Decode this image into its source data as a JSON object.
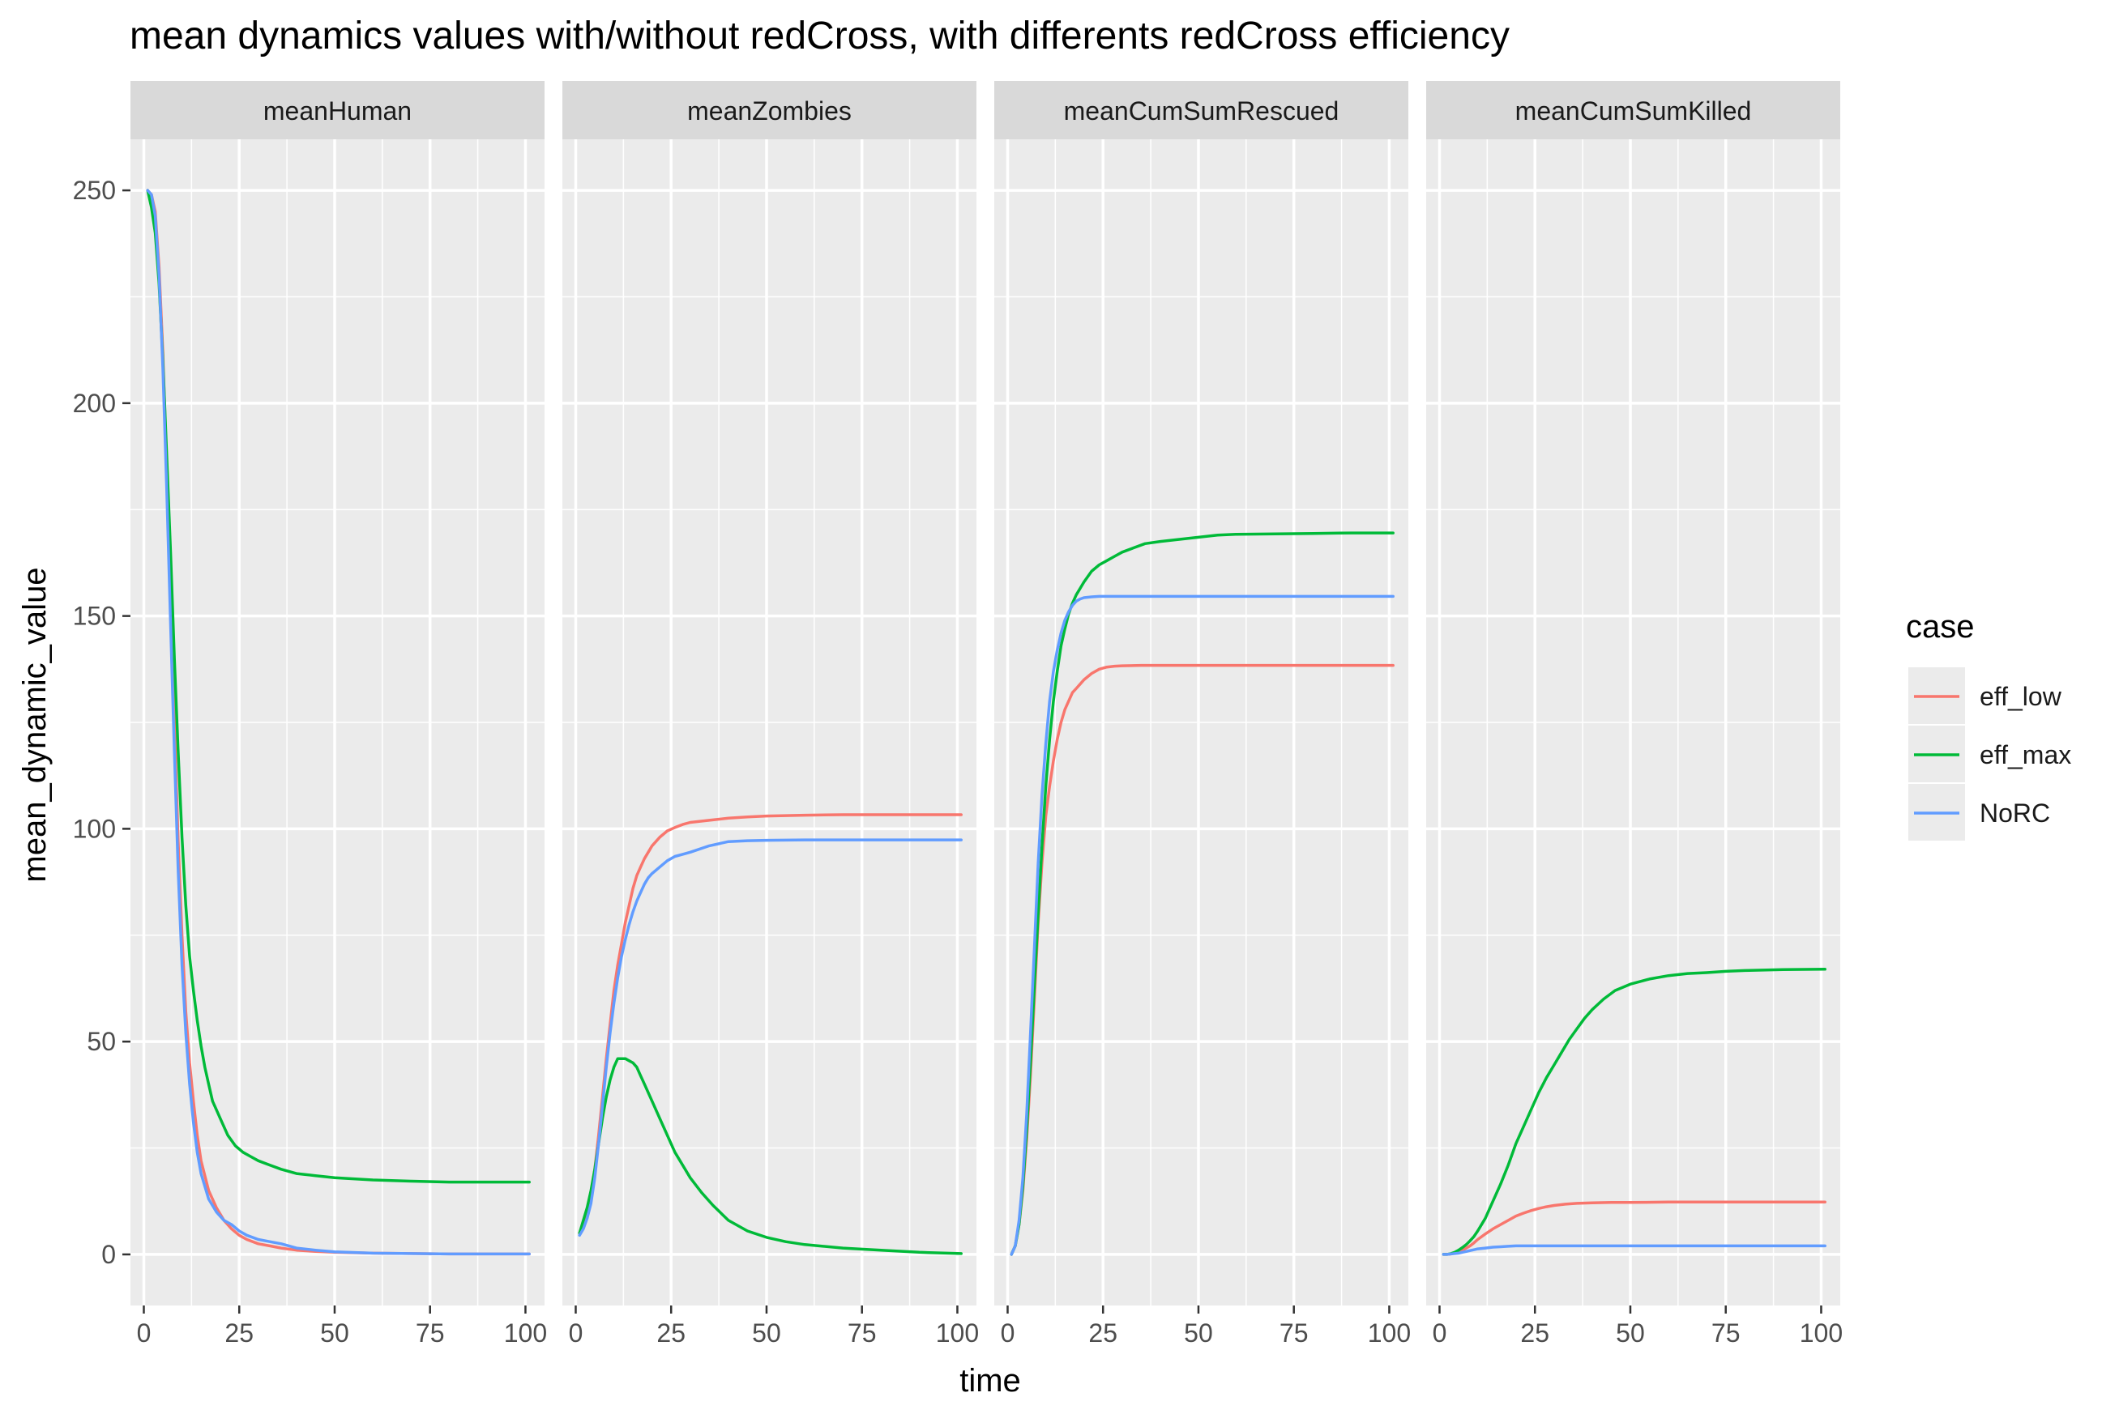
{
  "chart_data": {
    "type": "line",
    "title": "mean dynamics values with/without redCross, with differents redCross efficiency",
    "xlabel": "time",
    "ylabel": "mean_dynamic_value",
    "x_ticks": [
      0,
      25,
      50,
      75,
      100
    ],
    "y_ticks": [
      0,
      50,
      100,
      150,
      200,
      250
    ],
    "xlim": [
      -3.5,
      105
    ],
    "ylim": [
      -12,
      262
    ],
    "grid": true,
    "legend": {
      "title": "case",
      "position": "right",
      "entries": [
        {
          "name": "eff_low",
          "color": "#F8766D"
        },
        {
          "name": "eff_max",
          "color": "#00BA38"
        },
        {
          "name": "NoRC",
          "color": "#619CFF"
        }
      ]
    },
    "panels": [
      {
        "title": "meanHuman",
        "series": [
          {
            "name": "eff_low",
            "x": [
              1,
              2,
              3,
              4,
              5,
              6,
              7,
              8,
              9,
              10,
              11,
              12,
              13,
              14,
              15,
              17,
              19,
              21,
              23,
              25,
              27,
              30,
              33,
              36,
              40,
              45,
              50,
              60,
              70,
              80,
              90,
              101
            ],
            "y": [
              250,
              249,
              245,
              232,
              212,
              185,
              155,
              125,
              97,
              75,
              57,
              45,
              36,
              28,
              22,
              15,
              11,
              8,
              6,
              4.5,
              3.5,
              2.5,
              2,
              1.5,
              1,
              0.7,
              0.5,
              0.3,
              0.2,
              0.1,
              0.1,
              0.1
            ]
          },
          {
            "name": "eff_max",
            "x": [
              1,
              2,
              3,
              4,
              5,
              6,
              7,
              8,
              9,
              10,
              11,
              12,
              13,
              14,
              15,
              16,
              17,
              18,
              19,
              20,
              22,
              24,
              26,
              28,
              30,
              33,
              36,
              40,
              45,
              50,
              60,
              70,
              80,
              90,
              101
            ],
            "y": [
              250,
              246,
              240,
              228,
              210,
              188,
              165,
              140,
              118,
              98,
              82,
              70,
              62,
              55,
              49,
              44,
              40,
              36,
              34,
              32,
              28,
              25.5,
              24,
              23,
              22,
              21,
              20,
              19,
              18.5,
              18,
              17.5,
              17.2,
              17,
              17,
              17
            ]
          },
          {
            "name": "NoRC",
            "x": [
              1,
              2,
              3,
              4,
              5,
              6,
              7,
              8,
              9,
              10,
              11,
              12,
              13,
              14,
              15,
              17,
              19,
              21,
              23,
              25,
              27,
              30,
              33,
              36,
              40,
              45,
              50,
              60,
              70,
              80,
              90,
              101
            ],
            "y": [
              250,
              249,
              244,
              230,
              208,
              180,
              148,
              118,
              90,
              68,
              52,
              40,
              31,
              24,
              19,
              13,
              10,
              8,
              7,
              5.5,
              4.5,
              3.5,
              3,
              2.5,
              1.5,
              1,
              0.6,
              0.3,
              0.2,
              0.1,
              0.1,
              0.1
            ]
          }
        ]
      },
      {
        "title": "meanZombies",
        "series": [
          {
            "name": "eff_low",
            "x": [
              1,
              2,
              3,
              4,
              5,
              6,
              7,
              8,
              9,
              10,
              11,
              12,
              13,
              14,
              15,
              16,
              17,
              18,
              19,
              20,
              22,
              24,
              26,
              28,
              30,
              35,
              40,
              45,
              50,
              60,
              70,
              80,
              90,
              101
            ],
            "y": [
              5,
              7,
              10,
              14,
              20,
              28,
              37,
              46,
              54,
              62,
              68,
              73,
              78,
              82,
              86,
              89,
              91,
              93,
              94.5,
              96,
              98,
              99.5,
              100.3,
              101,
              101.5,
              102,
              102.5,
              102.8,
              103,
              103.2,
              103.3,
              103.3,
              103.3,
              103.3
            ]
          },
          {
            "name": "eff_max",
            "x": [
              1,
              2,
              3,
              4,
              5,
              6,
              7,
              8,
              9,
              10,
              11,
              12,
              13,
              14,
              15,
              16,
              17,
              18,
              19,
              20,
              22,
              24,
              26,
              28,
              30,
              33,
              36,
              40,
              45,
              50,
              55,
              60,
              70,
              80,
              90,
              101
            ],
            "y": [
              5,
              8,
              11,
              15,
              20,
              26,
              32,
              37,
              41,
              44,
              46,
              46,
              46,
              45.5,
              45,
              44,
              42,
              40,
              38,
              36,
              32,
              28,
              24,
              21,
              18,
              14.5,
              11.5,
              8,
              5.5,
              4,
              3,
              2.3,
              1.5,
              1,
              0.5,
              0.2
            ]
          },
          {
            "name": "NoRC",
            "x": [
              1,
              2,
              3,
              4,
              5,
              6,
              7,
              8,
              9,
              10,
              11,
              12,
              13,
              14,
              15,
              16,
              17,
              18,
              19,
              20,
              22,
              24,
              26,
              28,
              30,
              35,
              40,
              45,
              50,
              60,
              70,
              80,
              90,
              101
            ],
            "y": [
              4.5,
              6,
              8.5,
              12,
              18,
              26,
              35,
              44,
              52,
              59,
              65,
              70,
              74,
              77.5,
              80.5,
              83,
              85,
              87,
              88.5,
              89.5,
              91,
              92.5,
              93.5,
              94,
              94.5,
              96,
              97,
              97.2,
              97.3,
              97.4,
              97.4,
              97.4,
              97.4,
              97.4
            ]
          }
        ]
      },
      {
        "title": "meanCumSumRescued",
        "series": [
          {
            "name": "eff_low",
            "x": [
              1,
              2,
              3,
              4,
              5,
              6,
              7,
              8,
              9,
              10,
              11,
              12,
              13,
              14,
              15,
              16,
              17,
              18,
              19,
              20,
              22,
              24,
              26,
              28,
              30,
              35,
              40,
              50,
              60,
              70,
              80,
              90,
              101
            ],
            "y": [
              0,
              2,
              7,
              15,
              27,
              42,
              60,
              78,
              92,
              103,
              110,
              116,
              121,
              125,
              128,
              130,
              132,
              133,
              134,
              135,
              136.5,
              137.5,
              138,
              138.2,
              138.3,
              138.4,
              138.4,
              138.4,
              138.4,
              138.4,
              138.4,
              138.4,
              138.4
            ]
          },
          {
            "name": "eff_max",
            "x": [
              1,
              2,
              3,
              4,
              5,
              6,
              7,
              8,
              9,
              10,
              11,
              12,
              13,
              14,
              15,
              16,
              17,
              18,
              19,
              20,
              22,
              24,
              26,
              28,
              30,
              33,
              36,
              40,
              45,
              50,
              55,
              60,
              70,
              80,
              90,
              101
            ],
            "y": [
              0,
              2,
              7,
              16,
              29,
              45,
              63,
              80,
              96,
              110,
              121,
              130,
              137,
              143,
              147,
              150.5,
              153,
              155,
              156.5,
              158,
              160.5,
              162,
              163,
              164,
              165,
              166,
              167,
              167.5,
              168,
              168.5,
              169,
              169.2,
              169.3,
              169.4,
              169.5,
              169.5
            ]
          },
          {
            "name": "NoRC",
            "x": [
              1,
              2,
              3,
              4,
              5,
              6,
              7,
              8,
              9,
              10,
              11,
              12,
              13,
              14,
              15,
              16,
              17,
              18,
              19,
              20,
              22,
              24,
              26,
              28,
              30,
              35,
              40,
              50,
              60,
              70,
              80,
              90,
              101
            ],
            "y": [
              0,
              2,
              8,
              18,
              33,
              52,
              72,
              92,
              108,
              120,
              130,
              137,
              142,
              146,
              149,
              151,
              152.5,
              153.5,
              154,
              154.3,
              154.5,
              154.6,
              154.6,
              154.6,
              154.6,
              154.6,
              154.6,
              154.6,
              154.6,
              154.6,
              154.6,
              154.6,
              154.6
            ]
          }
        ]
      },
      {
        "title": "meanCumSumKilled",
        "series": [
          {
            "name": "eff_low",
            "x": [
              1,
              2,
              3,
              4,
              5,
              6,
              7,
              8,
              9,
              10,
              12,
              14,
              16,
              18,
              20,
              22,
              24,
              26,
              28,
              30,
              33,
              36,
              40,
              45,
              50,
              60,
              70,
              80,
              90,
              101
            ],
            "y": [
              0,
              0,
              0.1,
              0.3,
              0.6,
              1,
              1.5,
              2,
              2.7,
              3.5,
              4.8,
              6,
              7,
              8,
              9,
              9.7,
              10.3,
              10.8,
              11.2,
              11.5,
              11.8,
              12,
              12.1,
              12.2,
              12.2,
              12.3,
              12.3,
              12.3,
              12.3,
              12.3
            ]
          },
          {
            "name": "eff_max",
            "x": [
              1,
              2,
              3,
              4,
              5,
              6,
              7,
              8,
              9,
              10,
              12,
              14,
              16,
              18,
              20,
              22,
              24,
              26,
              28,
              30,
              32,
              34,
              36,
              38,
              40,
              43,
              46,
              50,
              55,
              60,
              65,
              70,
              75,
              80,
              90,
              101
            ],
            "y": [
              0,
              0,
              0.2,
              0.5,
              1,
              1.6,
              2.3,
              3.2,
              4.2,
              5.5,
              8.5,
              12.5,
              16.5,
              21,
              26,
              30,
              34,
              38,
              41.5,
              44.5,
              47.5,
              50.5,
              53,
              55.5,
              57.5,
              60,
              62,
              63.5,
              64.7,
              65.5,
              66,
              66.2,
              66.5,
              66.7,
              66.9,
              67
            ]
          },
          {
            "name": "NoRC",
            "x": [
              1,
              2,
              3,
              4,
              5,
              6,
              7,
              8,
              9,
              10,
              12,
              14,
              16,
              18,
              20,
              22,
              24,
              26,
              28,
              30,
              35,
              40,
              50,
              60,
              70,
              80,
              90,
              101
            ],
            "y": [
              0,
              0,
              0.1,
              0.2,
              0.3,
              0.5,
              0.7,
              0.9,
              1.1,
              1.3,
              1.5,
              1.7,
              1.8,
              1.9,
              2,
              2,
              2,
              2,
              2,
              2,
              2,
              2,
              2,
              2,
              2,
              2,
              2,
              2
            ]
          }
        ]
      }
    ]
  }
}
